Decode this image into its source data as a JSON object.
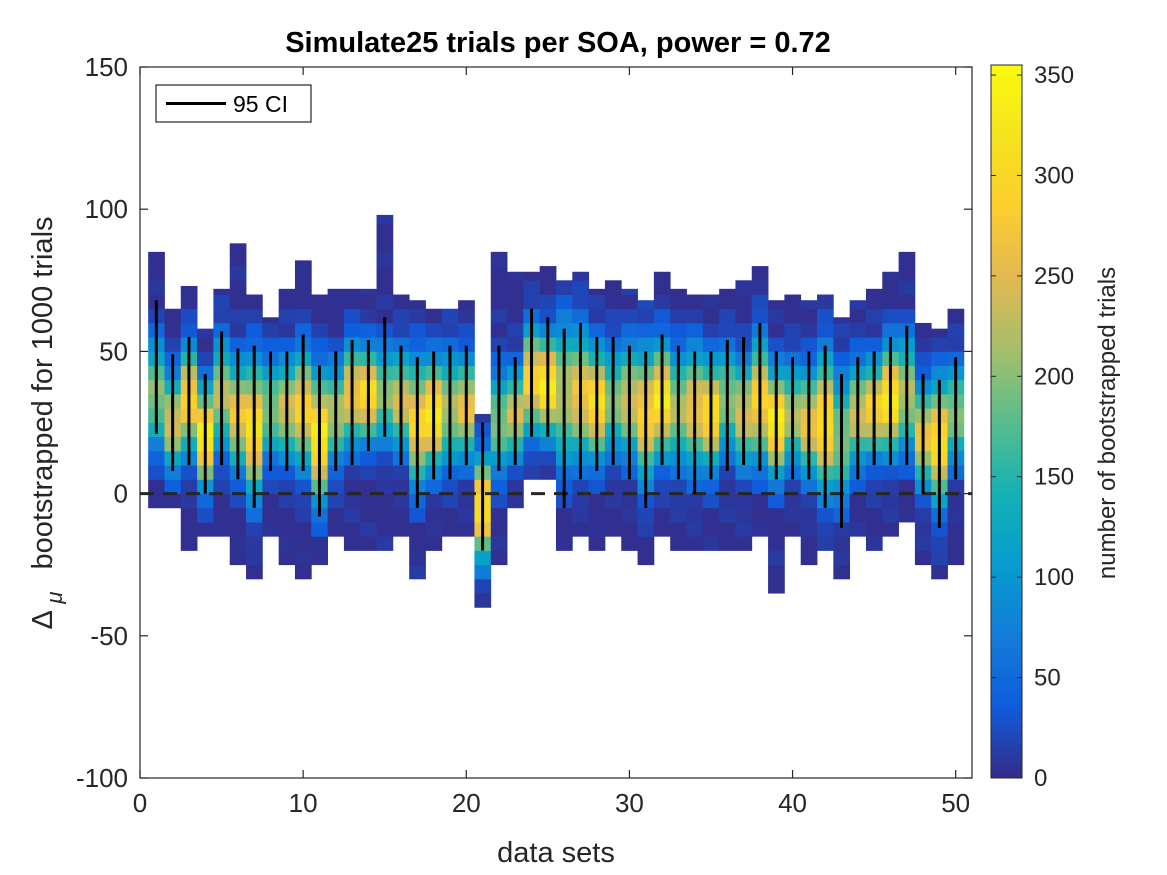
{
  "chart_data": {
    "type": "heatmap",
    "title": "Simulate25 trials per SOA, power = 0.72",
    "xlabel": "data sets",
    "ylabel_symbol": "Δ",
    "ylabel_subscript": "μ",
    "ylabel_text": "bootstrapped  for 1000 trials",
    "colorbar_label": "number of bootstrapped trials",
    "xlim": [
      0,
      51
    ],
    "ylim": [
      -100,
      150
    ],
    "xticks": [
      0,
      10,
      20,
      30,
      40,
      50
    ],
    "yticks": [
      -100,
      -50,
      0,
      50,
      100,
      150
    ],
    "colorbar_ticks": [
      0,
      50,
      100,
      150,
      200,
      250,
      300,
      350
    ],
    "colorbar_range": [
      0,
      355
    ],
    "colormap": "parula",
    "grid": false,
    "legend": {
      "placement": "top-left",
      "entries": [
        "95 CI"
      ]
    },
    "reference_line": {
      "y": 0,
      "style": "dashed",
      "color": "#262626"
    },
    "bin_height": 5,
    "datasets": [
      {
        "x": 1,
        "min": -5,
        "max": 85,
        "peak": 35,
        "ci": [
          21,
          68
        ]
      },
      {
        "x": 2,
        "min": -5,
        "max": 65,
        "peak": 25,
        "ci": [
          8,
          49
        ]
      },
      {
        "x": 3,
        "min": -20,
        "max": 73,
        "peak": 33,
        "ci": [
          10,
          55
        ]
      },
      {
        "x": 4,
        "min": -15,
        "max": 58,
        "peak": 20,
        "ci": [
          0,
          42
        ]
      },
      {
        "x": 5,
        "min": -15,
        "max": 72,
        "peak": 35,
        "ci": [
          10,
          57
        ]
      },
      {
        "x": 6,
        "min": -25,
        "max": 88,
        "peak": 28,
        "ci": [
          5,
          51
        ]
      },
      {
        "x": 7,
        "min": -30,
        "max": 70,
        "peak": 23,
        "ci": [
          -5,
          52
        ]
      },
      {
        "x": 8,
        "min": -15,
        "max": 62,
        "peak": 30,
        "ci": [
          8,
          50
        ]
      },
      {
        "x": 9,
        "min": -25,
        "max": 72,
        "peak": 30,
        "ci": [
          8,
          50
        ]
      },
      {
        "x": 10,
        "min": -30,
        "max": 82,
        "peak": 30,
        "ci": [
          8,
          56
        ]
      },
      {
        "x": 11,
        "min": -25,
        "max": 70,
        "peak": 20,
        "ci": [
          -8,
          45
        ]
      },
      {
        "x": 12,
        "min": -15,
        "max": 72,
        "peak": 28,
        "ci": [
          8,
          50
        ]
      },
      {
        "x": 13,
        "min": -20,
        "max": 72,
        "peak": 35,
        "ci": [
          10,
          54
        ]
      },
      {
        "x": 14,
        "min": -20,
        "max": 72,
        "peak": 35,
        "ci": [
          15,
          54
        ]
      },
      {
        "x": 15,
        "min": -20,
        "max": 98,
        "peak": 35,
        "ci": [
          20,
          62
        ]
      },
      {
        "x": 16,
        "min": -15,
        "max": 70,
        "peak": 33,
        "ci": [
          10,
          52
        ]
      },
      {
        "x": 17,
        "min": -30,
        "max": 68,
        "peak": 25,
        "ci": [
          -5,
          48
        ]
      },
      {
        "x": 18,
        "min": -18,
        "max": 65,
        "peak": 28,
        "ci": [
          5,
          50
        ]
      },
      {
        "x": 19,
        "min": -15,
        "max": 65,
        "peak": 30,
        "ci": [
          5,
          52
        ]
      },
      {
        "x": 20,
        "min": -15,
        "max": 68,
        "peak": 30,
        "ci": [
          10,
          52
        ]
      },
      {
        "x": 21,
        "min": -37,
        "max": 28,
        "peak": -5,
        "ci": [
          -20,
          25
        ]
      },
      {
        "x": 22,
        "min": -25,
        "max": 85,
        "peak": 25,
        "ci": [
          8,
          52
        ]
      },
      {
        "x": 23,
        "min": -5,
        "max": 78,
        "peak": 28,
        "ci": [
          10,
          48
        ]
      },
      {
        "x": 24,
        "min": 8,
        "max": 78,
        "peak": 40,
        "ci": [
          20,
          65
        ]
      },
      {
        "x": 25,
        "min": 8,
        "max": 80,
        "peak": 38,
        "ci": [
          20,
          62
        ]
      },
      {
        "x": 26,
        "min": -18,
        "max": 75,
        "peak": 35,
        "ci": [
          -5,
          58
        ]
      },
      {
        "x": 27,
        "min": -15,
        "max": 78,
        "peak": 35,
        "ci": [
          5,
          60
        ]
      },
      {
        "x": 28,
        "min": -18,
        "max": 72,
        "peak": 32,
        "ci": [
          8,
          55
        ]
      },
      {
        "x": 29,
        "min": -15,
        "max": 75,
        "peak": 33,
        "ci": [
          10,
          55
        ]
      },
      {
        "x": 30,
        "min": -20,
        "max": 72,
        "peak": 33,
        "ci": [
          5,
          52
        ]
      },
      {
        "x": 31,
        "min": -22,
        "max": 68,
        "peak": 28,
        "ci": [
          -5,
          50
        ]
      },
      {
        "x": 32,
        "min": -12,
        "max": 78,
        "peak": 33,
        "ci": [
          10,
          56
        ]
      },
      {
        "x": 33,
        "min": -18,
        "max": 72,
        "peak": 30,
        "ci": [
          5,
          52
        ]
      },
      {
        "x": 34,
        "min": -18,
        "max": 70,
        "peak": 30,
        "ci": [
          0,
          50
        ]
      },
      {
        "x": 35,
        "min": -18,
        "max": 70,
        "peak": 28,
        "ci": [
          5,
          50
        ]
      },
      {
        "x": 36,
        "min": -18,
        "max": 72,
        "peak": 33,
        "ci": [
          8,
          54
        ]
      },
      {
        "x": 37,
        "min": -18,
        "max": 75,
        "peak": 28,
        "ci": [
          10,
          55
        ]
      },
      {
        "x": 38,
        "min": -12,
        "max": 80,
        "peak": 33,
        "ci": [
          8,
          60
        ]
      },
      {
        "x": 39,
        "min": -32,
        "max": 68,
        "peak": 25,
        "ci": [
          5,
          50
        ]
      },
      {
        "x": 40,
        "min": -12,
        "max": 70,
        "peak": 28,
        "ci": [
          5,
          48
        ]
      },
      {
        "x": 41,
        "min": -25,
        "max": 68,
        "peak": 25,
        "ci": [
          5,
          50
        ]
      },
      {
        "x": 42,
        "min": -18,
        "max": 70,
        "peak": 25,
        "ci": [
          -5,
          52
        ]
      },
      {
        "x": 43,
        "min": -28,
        "max": 62,
        "peak": 20,
        "ci": [
          -12,
          42
        ]
      },
      {
        "x": 44,
        "min": -15,
        "max": 68,
        "peak": 28,
        "ci": [
          5,
          48
        ]
      },
      {
        "x": 45,
        "min": -18,
        "max": 72,
        "peak": 30,
        "ci": [
          10,
          50
        ]
      },
      {
        "x": 46,
        "min": -12,
        "max": 78,
        "peak": 33,
        "ci": [
          10,
          55
        ]
      },
      {
        "x": 47,
        "min": -10,
        "max": 85,
        "peak": 35,
        "ci": [
          10,
          59
        ]
      },
      {
        "x": 48,
        "min": -22,
        "max": 60,
        "peak": 20,
        "ci": [
          0,
          42
        ]
      },
      {
        "x": 49,
        "min": -28,
        "max": 58,
        "peak": 18,
        "ci": [
          -12,
          40
        ]
      },
      {
        "x": 50,
        "min": -25,
        "max": 65,
        "peak": 28,
        "ci": [
          5,
          48
        ]
      }
    ]
  }
}
